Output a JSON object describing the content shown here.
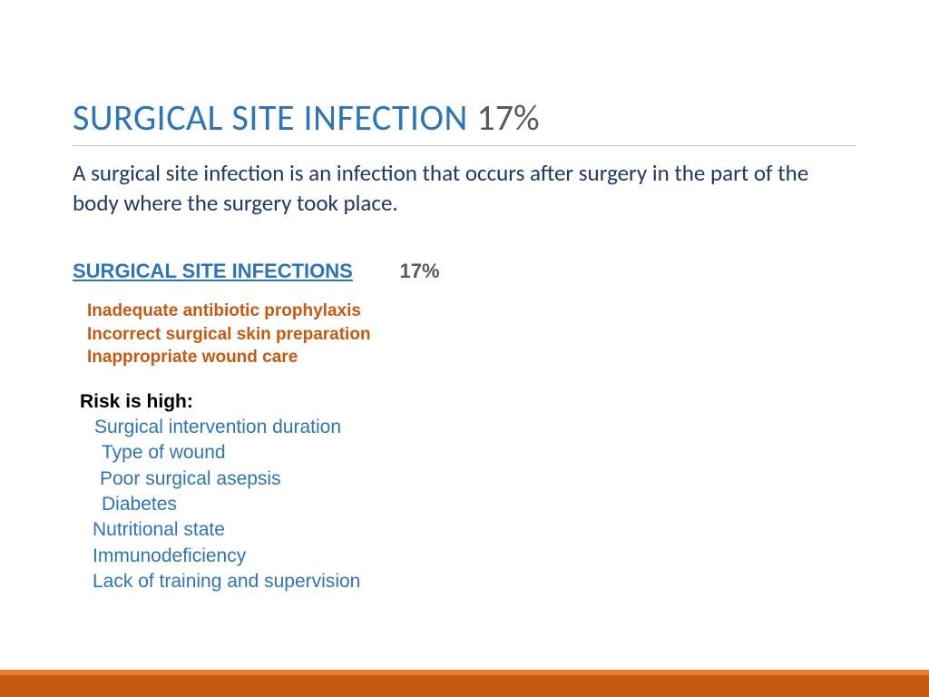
{
  "colors": {
    "title_blue": "#2e75b6",
    "title_gray": "#595959",
    "definition_navy": "#1f3864",
    "subhead_blue": "#2e75b6",
    "subhead_gray": "#595959",
    "causes_orange": "#c55a11",
    "risk_black": "#000000",
    "risk_items_blue": "#2e75b6",
    "footer_top": "#ed7d31",
    "footer_main": "#c55a11",
    "rule": "#bfbfbf"
  },
  "title": {
    "main": "SURGICAL  SITE INFECTION",
    "percent": "17%"
  },
  "definition": "A surgical site infection is an infection that occurs after surgery in the part of the body where the surgery took place.",
  "subheading": {
    "label": "SURGICAL SITE INFECTIONS",
    "percent": "17%"
  },
  "causes": [
    "Inadequate antibiotic prophylaxis",
    "Incorrect surgical skin preparation",
    "Inappropriate wound care"
  ],
  "risk": {
    "label": "Risk is high:",
    "items": [
      "Surgical intervention duration",
      "Type of wound",
      "Poor surgical asepsis",
      "Diabetes",
      "Nutritional state",
      "Immunodeficiency",
      "Lack of training and supervision"
    ]
  }
}
